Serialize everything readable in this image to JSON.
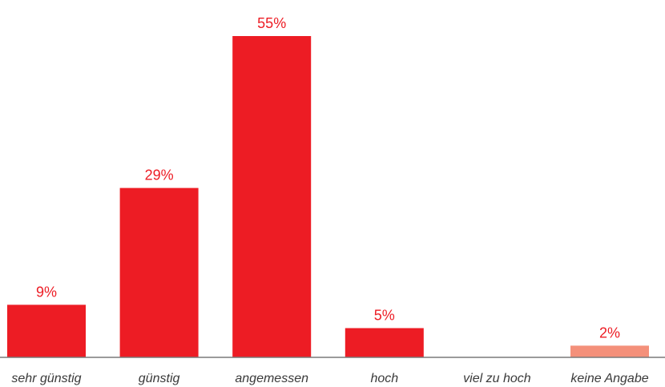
{
  "chart_data": {
    "type": "bar",
    "categories": [
      "sehr günstig",
      "günstig",
      "angemessen",
      "hoch",
      "viel zu hoch",
      "keine Angabe"
    ],
    "values": [
      9,
      29,
      55,
      5,
      0,
      2
    ],
    "value_labels": [
      "9%",
      "29%",
      "55%",
      "5%",
      "",
      "2%"
    ],
    "bar_colors": [
      "#ed1c24",
      "#ed1c24",
      "#ed1c24",
      "#ed1c24",
      "#ed1c24",
      "#f4907a"
    ],
    "label_color": "#ed1c24",
    "axis_color": "#7a7a7a",
    "ylim": [
      0,
      55
    ],
    "grid": false,
    "legend": "none"
  }
}
